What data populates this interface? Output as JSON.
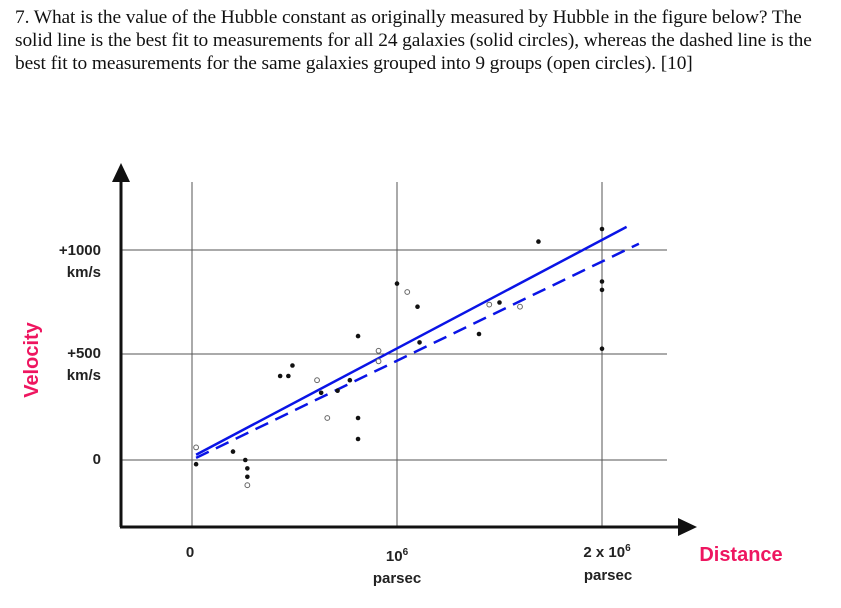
{
  "question": {
    "text": "7.  What is the value of the Hubble constant as originally measured by Hubble in the figure below?  The solid line is the best fit to measurements for all 24 galaxies (solid circles), whereas the dashed line is the best fit to measurements for the same galaxies grouped into 9 groups (open circles).   [10]"
  },
  "chart": {
    "y_title": "Velocity",
    "x_title": "Distance",
    "y_ticks": [
      {
        "line1": "+1000",
        "line2": "km/s"
      },
      {
        "line1": "+500",
        "line2": "km/s"
      },
      {
        "line1": "0",
        "line2": ""
      }
    ],
    "x_ticks": [
      {
        "line1": "0",
        "line2": ""
      },
      {
        "line1": "10",
        "sup": "6",
        "line2": "parsec"
      },
      {
        "line1": "2 x 10",
        "sup": "6",
        "line2": "parsec"
      }
    ]
  },
  "colors": {
    "fit_line": "#0a14e6",
    "axis_title": "#ee1660",
    "grid": "#555555",
    "axis": "#111111"
  },
  "chart_data": {
    "type": "scatter",
    "title": "",
    "xlabel": "Distance (parsec)",
    "ylabel": "Velocity (km/s)",
    "xlim": [
      -350000.0,
      2450000.0
    ],
    "ylim": [
      -330,
      1330
    ],
    "grid": true,
    "x_ticks": [
      0,
      1000000,
      2000000
    ],
    "y_ticks": [
      0,
      500,
      1000
    ],
    "series": [
      {
        "name": "Individual galaxies (solid circles)",
        "marker": "filled",
        "points": [
          [
            20000.0,
            -20
          ],
          [
            200000.0,
            40
          ],
          [
            260000.0,
            0
          ],
          [
            270000.0,
            -40
          ],
          [
            270000.0,
            -80
          ],
          [
            430000.0,
            400
          ],
          [
            470000.0,
            400
          ],
          [
            490000.0,
            450
          ],
          [
            630000.0,
            320
          ],
          [
            810000.0,
            200
          ],
          [
            810000.0,
            100
          ],
          [
            810000.0,
            590
          ],
          [
            1000000.0,
            840
          ],
          [
            1100000.0,
            730
          ],
          [
            1110000.0,
            560
          ],
          [
            1400000.0,
            600
          ],
          [
            1500000.0,
            750
          ],
          [
            1690000.0,
            1040
          ],
          [
            2000000.0,
            1100
          ],
          [
            2000000.0,
            850
          ],
          [
            2000000.0,
            810
          ],
          [
            2000000.0,
            530
          ],
          [
            770000.0,
            380
          ],
          [
            710000.0,
            330
          ]
        ]
      },
      {
        "name": "Grouped galaxies (open circles)",
        "marker": "open",
        "points": [
          [
            20000.0,
            60
          ],
          [
            270000.0,
            -120
          ],
          [
            610000.0,
            380
          ],
          [
            660000.0,
            200
          ],
          [
            910000.0,
            520
          ],
          [
            910000.0,
            470
          ],
          [
            1050000.0,
            800
          ],
          [
            1600000.0,
            730
          ],
          [
            1450000.0,
            740
          ]
        ]
      }
    ],
    "fit_lines": [
      {
        "name": "Best fit, 24 galaxies",
        "style": "solid",
        "from": [
          20000.0,
          25
        ],
        "to": [
          2120000.0,
          1110
        ]
      },
      {
        "name": "Best fit, 9 groups",
        "style": "dashed",
        "from": [
          20000.0,
          10
        ],
        "to": [
          2180000.0,
          1030
        ]
      }
    ]
  }
}
